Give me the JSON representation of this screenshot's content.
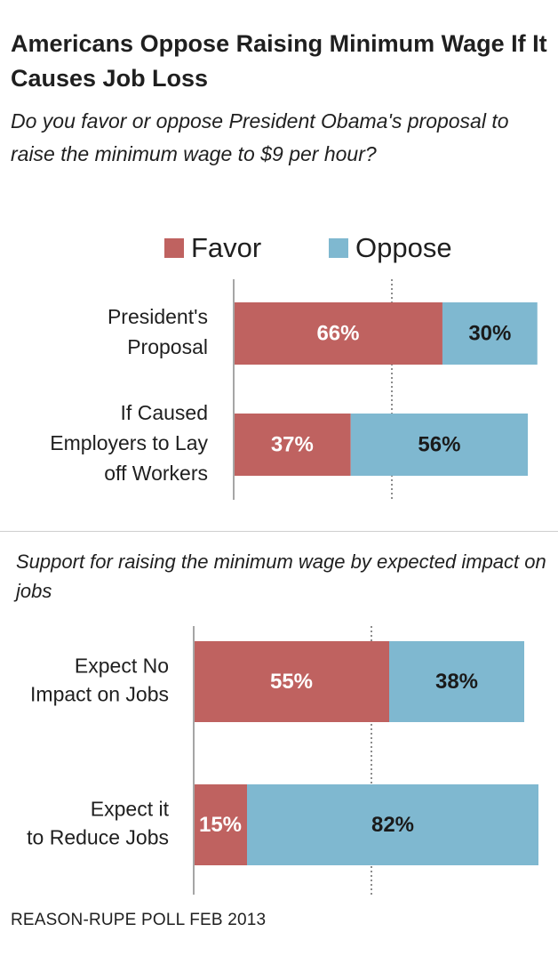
{
  "header": {
    "title": "Americans Oppose Raising Minimum Wage If It Causes Job Loss",
    "subtitle": "Do you favor or oppose President Obama's proposal to raise the minimum wage to $9 per hour?"
  },
  "legend": {
    "favor": {
      "label": "Favor",
      "color": "#bf6260"
    },
    "oppose": {
      "label": "Oppose",
      "color": "#7fb8d0"
    }
  },
  "section2": {
    "subtitle": "Support for raising the minimum wage by expected impact on jobs"
  },
  "footer": {
    "source": "REASON-RUPE POLL FEB 2013"
  },
  "chart_data": [
    {
      "type": "bar",
      "orientation": "horizontal",
      "stacked": true,
      "categories": [
        [
          "President's",
          "Proposal"
        ],
        [
          "If Caused",
          "Employers to Lay",
          "off Workers"
        ]
      ],
      "series": [
        {
          "name": "Favor",
          "color": "#bf6260",
          "values": [
            66,
            37
          ],
          "labels": [
            "66%",
            "37%"
          ],
          "label_color": "#ffffff"
        },
        {
          "name": "Oppose",
          "color": "#7fb8d0",
          "values": [
            30,
            56
          ],
          "labels": [
            "30%",
            "56%"
          ],
          "label_color": "#1a1a1a"
        }
      ],
      "xlim": [
        0,
        100
      ],
      "reference_line": 50
    },
    {
      "type": "bar",
      "orientation": "horizontal",
      "stacked": true,
      "categories": [
        [
          "Expect No",
          "Impact on Jobs"
        ],
        [
          "Expect it",
          "to Reduce Jobs"
        ]
      ],
      "series": [
        {
          "name": "Favor",
          "color": "#bf6260",
          "values": [
            55,
            15
          ],
          "labels": [
            "55%",
            "15%"
          ],
          "label_color": "#ffffff"
        },
        {
          "name": "Oppose",
          "color": "#7fb8d0",
          "values": [
            38,
            82
          ],
          "labels": [
            "38%",
            "82%"
          ],
          "label_color": "#1a1a1a"
        }
      ],
      "xlim": [
        0,
        100
      ],
      "reference_line": 50
    }
  ]
}
